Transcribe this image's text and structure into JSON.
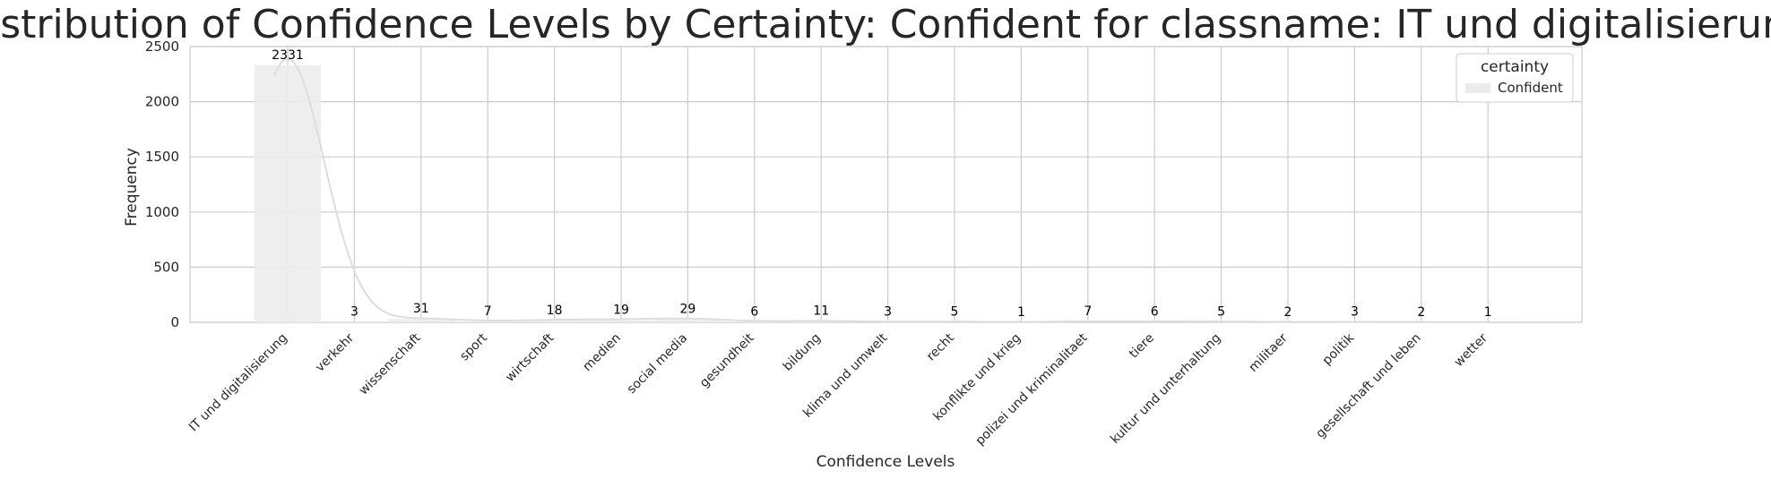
{
  "chart_data": {
    "type": "bar",
    "title": "Distribution of Confidence Levels by Certainty: Confident for classname: IT und digitalisierung",
    "xlabel": "Confidence Levels",
    "ylabel": "Frequency",
    "ylim": [
      0,
      2500
    ],
    "yticks": [
      0,
      500,
      1000,
      1500,
      2000,
      2500
    ],
    "grid": true,
    "kde_curve": true,
    "legend": {
      "title": "certainty",
      "placement": "top-right",
      "entries": [
        {
          "label": "Confident",
          "color": "#ececec"
        }
      ]
    },
    "categories": [
      "IT und digitalisierung",
      "verkehr",
      "wissenschaft",
      "sport",
      "wirtschaft",
      "medien",
      "social media",
      "gesundheit",
      "bildung",
      "klima und umwelt",
      "recht",
      "konflikte und krieg",
      "polizei und kriminalitaet",
      "tiere",
      "kultur und unterhaltung",
      "militaer",
      "politik",
      "gesellschaft und leben",
      "wetter"
    ],
    "series": [
      {
        "name": "Confident",
        "color": "#ececec",
        "values": [
          2331,
          3,
          31,
          7,
          18,
          19,
          29,
          6,
          11,
          3,
          5,
          1,
          7,
          6,
          5,
          2,
          3,
          2,
          1
        ]
      }
    ]
  }
}
